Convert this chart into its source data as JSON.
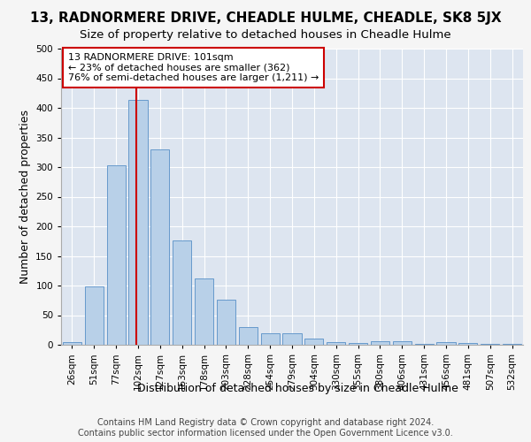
{
  "title1": "13, RADNORMERE DRIVE, CHEADLE HULME, CHEADLE, SK8 5JX",
  "title2": "Size of property relative to detached houses in Cheadle Hulme",
  "xlabel": "Distribution of detached houses by size in Cheadle Hulme",
  "ylabel": "Number of detached properties",
  "footer1": "Contains HM Land Registry data © Crown copyright and database right 2024.",
  "footer2": "Contains public sector information licensed under the Open Government Licence v3.0.",
  "bar_labels": [
    "26sqm",
    "51sqm",
    "77sqm",
    "102sqm",
    "127sqm",
    "153sqm",
    "178sqm",
    "203sqm",
    "228sqm",
    "254sqm",
    "279sqm",
    "304sqm",
    "330sqm",
    "355sqm",
    "380sqm",
    "406sqm",
    "431sqm",
    "456sqm",
    "481sqm",
    "507sqm",
    "532sqm"
  ],
  "bar_values": [
    5,
    99,
    303,
    413,
    330,
    176,
    112,
    76,
    30,
    20,
    20,
    11,
    5,
    3,
    6,
    6,
    1,
    5,
    3,
    1,
    1
  ],
  "bar_color": "#b8d0e8",
  "bar_edge_color": "#6699cc",
  "vline_x": 2.925,
  "vline_color": "#cc0000",
  "annotation_text": "13 RADNORMERE DRIVE: 101sqm\n← 23% of detached houses are smaller (362)\n76% of semi-detached houses are larger (1,211) →",
  "annotation_facecolor": "#ffffff",
  "annotation_edgecolor": "#cc0000",
  "ylim_max": 500,
  "ytick_step": 50,
  "plot_bg": "#dde5f0",
  "grid_color": "#ffffff",
  "title1_fontsize": 11,
  "title2_fontsize": 9.5,
  "footer_fontsize": 7,
  "ylabel_fontsize": 9,
  "xlabel_fontsize": 9,
  "tick_fontsize": 7.5,
  "annot_fontsize": 8
}
